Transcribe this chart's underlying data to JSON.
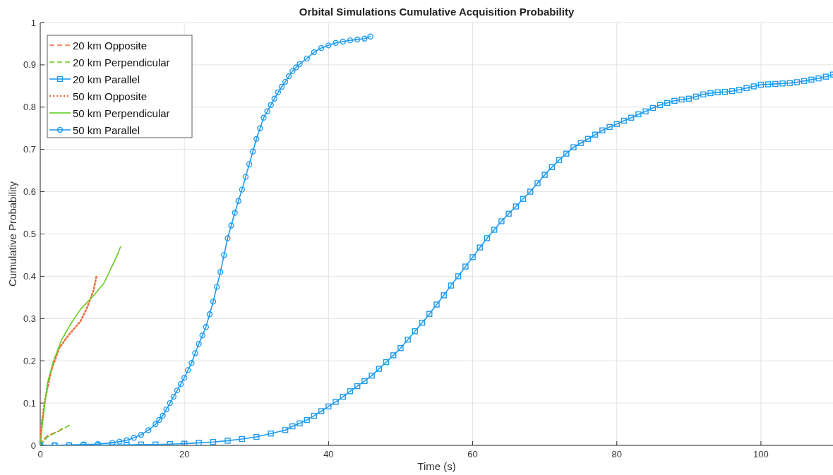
{
  "chart_data": {
    "type": "line",
    "title": "Orbital Simulations Cumulative Acquisition Probability",
    "xlabel": "Time (s)",
    "ylabel": "Cumulative Probability",
    "xlim": [
      0,
      110
    ],
    "ylim": [
      0,
      1
    ],
    "xticks": [
      0,
      20,
      40,
      60,
      80,
      100
    ],
    "yticks": [
      0,
      0.1,
      0.2,
      0.3,
      0.4,
      0.5,
      0.6,
      0.7,
      0.8,
      0.9,
      1
    ],
    "grid": true,
    "legend": "top left",
    "series": [
      {
        "name": "20 km Opposite",
        "color": "#f26b3a",
        "line_style": "dashed",
        "marker": "none",
        "x": [
          0,
          0.3,
          1,
          2,
          2.6,
          3.1
        ],
        "values": [
          0,
          0.011,
          0.023,
          0.03,
          0.034,
          0.042
        ]
      },
      {
        "name": "20 km Perpendicular",
        "color": "#66cc22",
        "line_style": "dashed",
        "marker": "none",
        "x": [
          0,
          1,
          2.6,
          3.5,
          4.3
        ],
        "values": [
          0,
          0.02,
          0.034,
          0.042,
          0.05
        ]
      },
      {
        "name": "20 km Parallel",
        "color": "#1e9bf0",
        "line_style": "solid",
        "marker": "square",
        "x": [
          0,
          2,
          4,
          6,
          8,
          10,
          12,
          14,
          16,
          18,
          20,
          22,
          24,
          26,
          28,
          30,
          32,
          34,
          35,
          36,
          37,
          38,
          39,
          40,
          41,
          42,
          43,
          44,
          45,
          46,
          47,
          48,
          49,
          50,
          51,
          52,
          53,
          54,
          55,
          56,
          57,
          58,
          59,
          60,
          61,
          62,
          63,
          64,
          65,
          66,
          67,
          68,
          69,
          70,
          71,
          72,
          73,
          74,
          75,
          76,
          77,
          78,
          79,
          80,
          81,
          82,
          83,
          84,
          85,
          86,
          87,
          88,
          89,
          90,
          91,
          92,
          93,
          94,
          95,
          96,
          97,
          98,
          99,
          100,
          101,
          102,
          103,
          104,
          105,
          106,
          107,
          108,
          109,
          110
        ],
        "values": [
          0,
          0,
          0,
          0,
          0,
          0.001,
          0.001,
          0.002,
          0.002,
          0.003,
          0.004,
          0.006,
          0.008,
          0.011,
          0.015,
          0.02,
          0.028,
          0.036,
          0.045,
          0.052,
          0.06,
          0.07,
          0.081,
          0.092,
          0.103,
          0.115,
          0.128,
          0.14,
          0.152,
          0.165,
          0.181,
          0.197,
          0.213,
          0.23,
          0.25,
          0.27,
          0.29,
          0.311,
          0.333,
          0.355,
          0.378,
          0.4,
          0.423,
          0.445,
          0.468,
          0.49,
          0.51,
          0.53,
          0.548,
          0.565,
          0.583,
          0.6,
          0.62,
          0.64,
          0.658,
          0.675,
          0.69,
          0.705,
          0.715,
          0.725,
          0.735,
          0.745,
          0.753,
          0.76,
          0.768,
          0.775,
          0.783,
          0.79,
          0.798,
          0.805,
          0.81,
          0.815,
          0.818,
          0.82,
          0.825,
          0.83,
          0.833,
          0.835,
          0.836,
          0.838,
          0.841,
          0.845,
          0.849,
          0.853,
          0.854,
          0.855,
          0.856,
          0.857,
          0.859,
          0.862,
          0.865,
          0.868,
          0.872,
          0.877
        ]
      },
      {
        "name": "50 km Opposite",
        "color": "#f26b3a",
        "line_style": "dotted",
        "marker": "none",
        "x": [
          0,
          0.16,
          0.66,
          1.5,
          2.6,
          3.9,
          5.6,
          6.56,
          7.4,
          7.8
        ],
        "values": [
          0,
          0.05,
          0.107,
          0.175,
          0.229,
          0.26,
          0.294,
          0.328,
          0.367,
          0.4
        ]
      },
      {
        "name": "50 km Perpendicular",
        "color": "#66cc22",
        "line_style": "solid",
        "marker": "none",
        "x": [
          0,
          0.5,
          1,
          1.8,
          2.95,
          4.26,
          5.6,
          7.5,
          8.85,
          9.8,
          10.66,
          11.15
        ],
        "values": [
          0,
          0.08,
          0.147,
          0.198,
          0.249,
          0.288,
          0.322,
          0.356,
          0.384,
          0.418,
          0.449,
          0.47
        ]
      },
      {
        "name": "50 km Parallel",
        "color": "#1e9bf0",
        "line_style": "solid",
        "marker": "circle",
        "x": [
          0,
          2,
          4,
          6,
          8,
          10,
          11,
          12,
          13,
          14,
          15,
          16,
          16.5,
          17,
          17.5,
          18,
          18.5,
          19,
          19.5,
          20,
          20.5,
          21,
          21.5,
          22,
          22.5,
          23,
          23.5,
          24,
          24.5,
          25,
          25.5,
          26,
          26.5,
          27,
          27.5,
          28,
          28.5,
          29,
          29.5,
          30,
          30.5,
          31,
          31.5,
          32,
          32.5,
          33,
          33.5,
          34,
          34.5,
          35,
          35.5,
          36,
          37,
          38,
          39,
          40,
          41,
          42,
          43,
          44,
          45,
          45.8
        ],
        "values": [
          0,
          0,
          0.001,
          0.002,
          0.003,
          0.006,
          0.009,
          0.012,
          0.018,
          0.025,
          0.036,
          0.05,
          0.06,
          0.07,
          0.085,
          0.1,
          0.115,
          0.13,
          0.145,
          0.16,
          0.178,
          0.195,
          0.218,
          0.24,
          0.26,
          0.28,
          0.31,
          0.34,
          0.375,
          0.41,
          0.45,
          0.49,
          0.52,
          0.55,
          0.578,
          0.605,
          0.635,
          0.665,
          0.695,
          0.725,
          0.75,
          0.775,
          0.79,
          0.805,
          0.82,
          0.835,
          0.848,
          0.86,
          0.873,
          0.885,
          0.894,
          0.902,
          0.915,
          0.93,
          0.94,
          0.946,
          0.952,
          0.955,
          0.958,
          0.96,
          0.962,
          0.967
        ]
      }
    ]
  }
}
